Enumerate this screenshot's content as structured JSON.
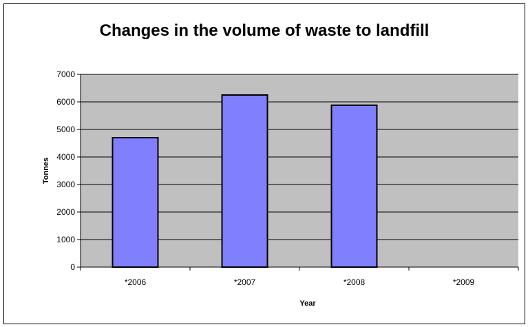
{
  "chart_data": {
    "type": "bar",
    "title": "Changes in the volume of waste to landfill",
    "xlabel": "Year",
    "ylabel": "Tonnes",
    "categories": [
      "*2006",
      "*2007",
      "*2008",
      "*2009"
    ],
    "values": [
      4700,
      6250,
      5880,
      0
    ],
    "ylim": [
      0,
      7000
    ],
    "yticks": [
      "0",
      "1000",
      "2000",
      "3000",
      "4000",
      "5000",
      "6000",
      "7000"
    ],
    "grid": true,
    "legend": "none",
    "colors": {
      "plot_background": "#c0c0c0",
      "bar_fill": "#8080ff",
      "bar_stroke": "#000000",
      "gridline": "#000000"
    }
  }
}
